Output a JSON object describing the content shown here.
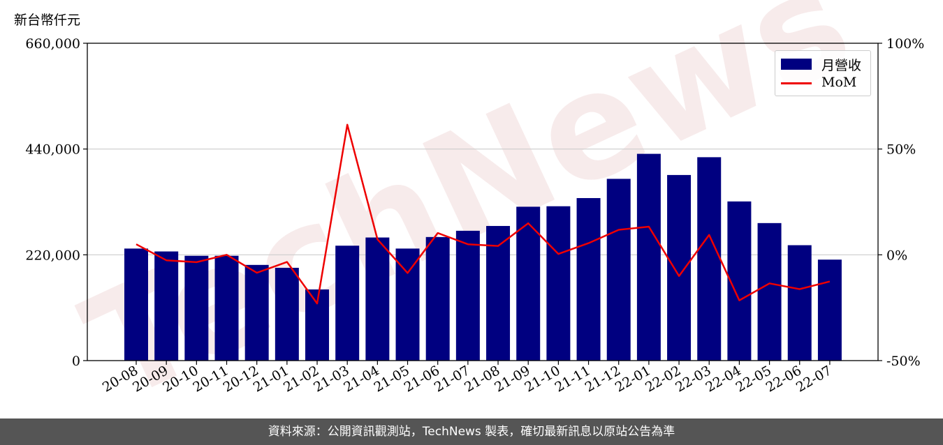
{
  "unit_label": "新台幣仟元",
  "footer_text": "資料來源：公開資訊觀測站，TechNews 製表，確切最新訊息以原站公告為準",
  "watermark": "TechNews",
  "colors": {
    "bar": "#000080",
    "line": "#ee0000",
    "footer_bg": "#555555",
    "grid": "#cccccc"
  },
  "chart_data": {
    "type": "bar",
    "categories": [
      "20-08",
      "20-09",
      "20-10",
      "20-11",
      "20-12",
      "21-01",
      "21-02",
      "21-03",
      "21-04",
      "21-05",
      "21-06",
      "21-07",
      "21-08",
      "21-09",
      "21-10",
      "21-11",
      "21-12",
      "22-01",
      "22-02",
      "22-03",
      "22-04",
      "22-05",
      "22-06",
      "22-07"
    ],
    "series": [
      {
        "name": "月營收",
        "type": "bar",
        "axis": "left",
        "values": [
          233000,
          227000,
          218000,
          218000,
          199000,
          193000,
          148000,
          239000,
          256000,
          233000,
          257000,
          270000,
          280000,
          320000,
          321000,
          338000,
          378000,
          430000,
          386000,
          423000,
          331000,
          286000,
          240000,
          210000
        ]
      },
      {
        "name": "MoM",
        "type": "line",
        "axis": "right",
        "values": [
          5,
          -2.6,
          -3.5,
          0,
          -8.5,
          -3.4,
          -23,
          61.5,
          7.3,
          -8.6,
          10.3,
          5,
          4.2,
          14.9,
          0.4,
          5.5,
          11.8,
          13.3,
          -10,
          9.4,
          -21.5,
          -13.5,
          -16.2,
          -12.6
        ]
      }
    ],
    "y_left": {
      "range": [
        0,
        660000
      ],
      "ticks": [
        "0",
        "220,000",
        "440,000",
        "660,000"
      ],
      "tick_values": [
        0,
        220000,
        440000,
        660000
      ]
    },
    "y_right": {
      "range": [
        -50,
        100
      ],
      "ticks": [
        "-50%",
        "0%",
        "50%",
        "100%"
      ],
      "tick_values": [
        -50,
        0,
        50,
        100
      ]
    },
    "grid": true,
    "legend_position": "top-right"
  }
}
